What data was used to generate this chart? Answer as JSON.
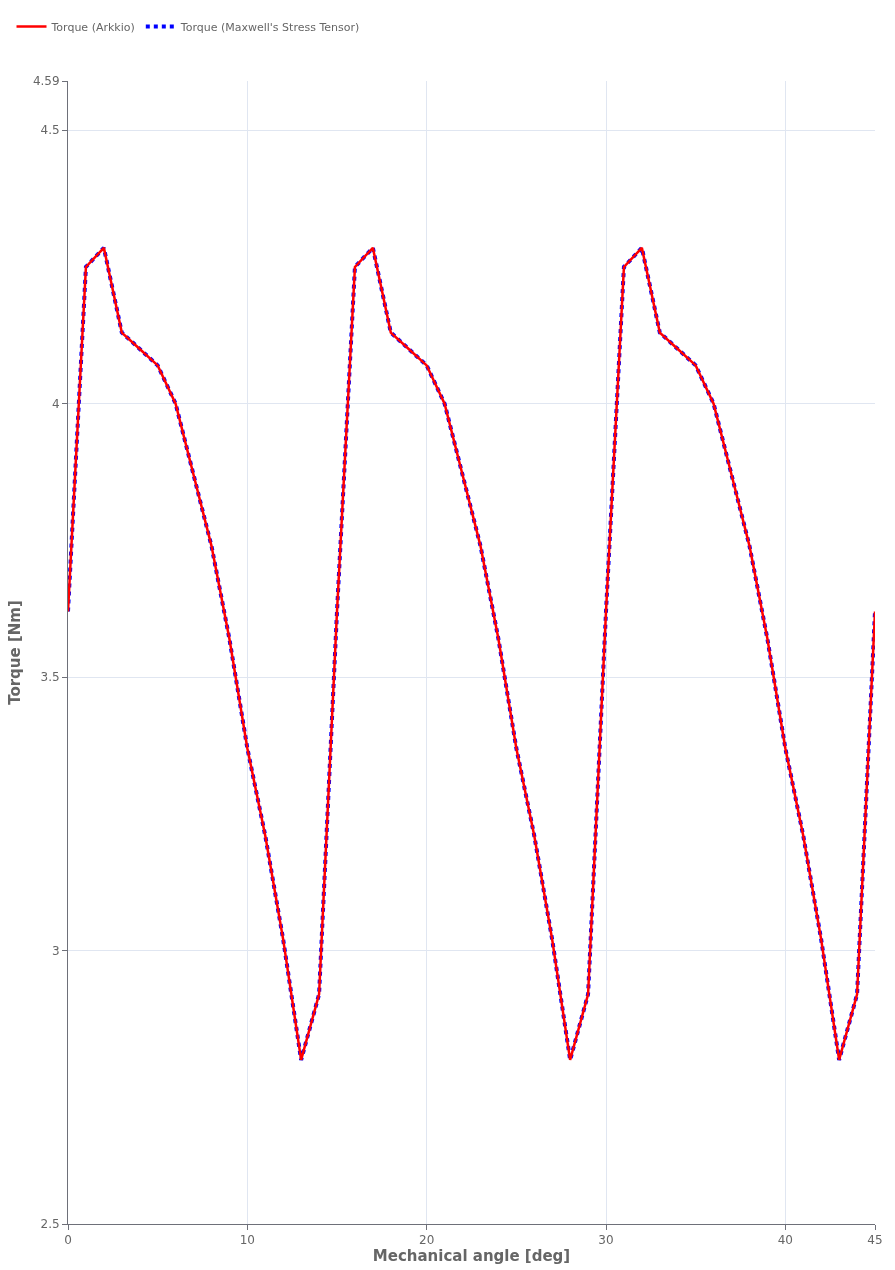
{
  "chart_data": {
    "type": "line",
    "xlabel": "Mechanical angle [deg]",
    "ylabel": "Torque [Nm]",
    "x": [
      0,
      1,
      2,
      3,
      4,
      5,
      6,
      7,
      8,
      9,
      10,
      11,
      12,
      13,
      14,
      15,
      16,
      17,
      18,
      19,
      20,
      21,
      22,
      23,
      24,
      25,
      26,
      27,
      28,
      29,
      30,
      31,
      32,
      33,
      34,
      35,
      36,
      37,
      38,
      39,
      40,
      41,
      42,
      43,
      44,
      45
    ],
    "series": [
      {
        "name": "Torque (Arkkio)",
        "color": "#ff0000",
        "line_style": "solid",
        "values": [
          3.62,
          4.25,
          4.285,
          4.13,
          4.1,
          4.07,
          4.0,
          3.87,
          3.74,
          3.57,
          3.37,
          3.21,
          3.02,
          2.8,
          2.92,
          3.62,
          4.25,
          4.285,
          4.13,
          4.1,
          4.07,
          4.0,
          3.87,
          3.74,
          3.57,
          3.37,
          3.21,
          3.02,
          2.8,
          2.92,
          3.62,
          4.25,
          4.285,
          4.13,
          4.1,
          4.07,
          4.0,
          3.87,
          3.74,
          3.57,
          3.37,
          3.21,
          3.02,
          2.8,
          2.92,
          3.62
        ]
      },
      {
        "name": "Torque (Maxwell's Stress Tensor)",
        "color": "#0000ff",
        "line_style": "dotted",
        "values": [
          3.62,
          4.25,
          4.285,
          4.13,
          4.1,
          4.07,
          4.0,
          3.87,
          3.74,
          3.57,
          3.37,
          3.21,
          3.02,
          2.8,
          2.92,
          3.62,
          4.25,
          4.285,
          4.13,
          4.1,
          4.07,
          4.0,
          3.87,
          3.74,
          3.57,
          3.37,
          3.21,
          3.02,
          2.8,
          2.92,
          3.62,
          4.25,
          4.285,
          4.13,
          4.1,
          4.07,
          4.0,
          3.87,
          3.74,
          3.57,
          3.37,
          3.21,
          3.02,
          2.8,
          2.92,
          3.62
        ]
      }
    ],
    "xlim": [
      0,
      45
    ],
    "xticks": [
      0,
      10,
      20,
      30,
      40,
      45
    ],
    "ylim": [
      2.5,
      4.59
    ],
    "yticks": [
      2.5,
      3,
      3.5,
      4,
      4.5,
      4.59
    ],
    "grid": true,
    "legend": "top left",
    "marker": "none"
  }
}
